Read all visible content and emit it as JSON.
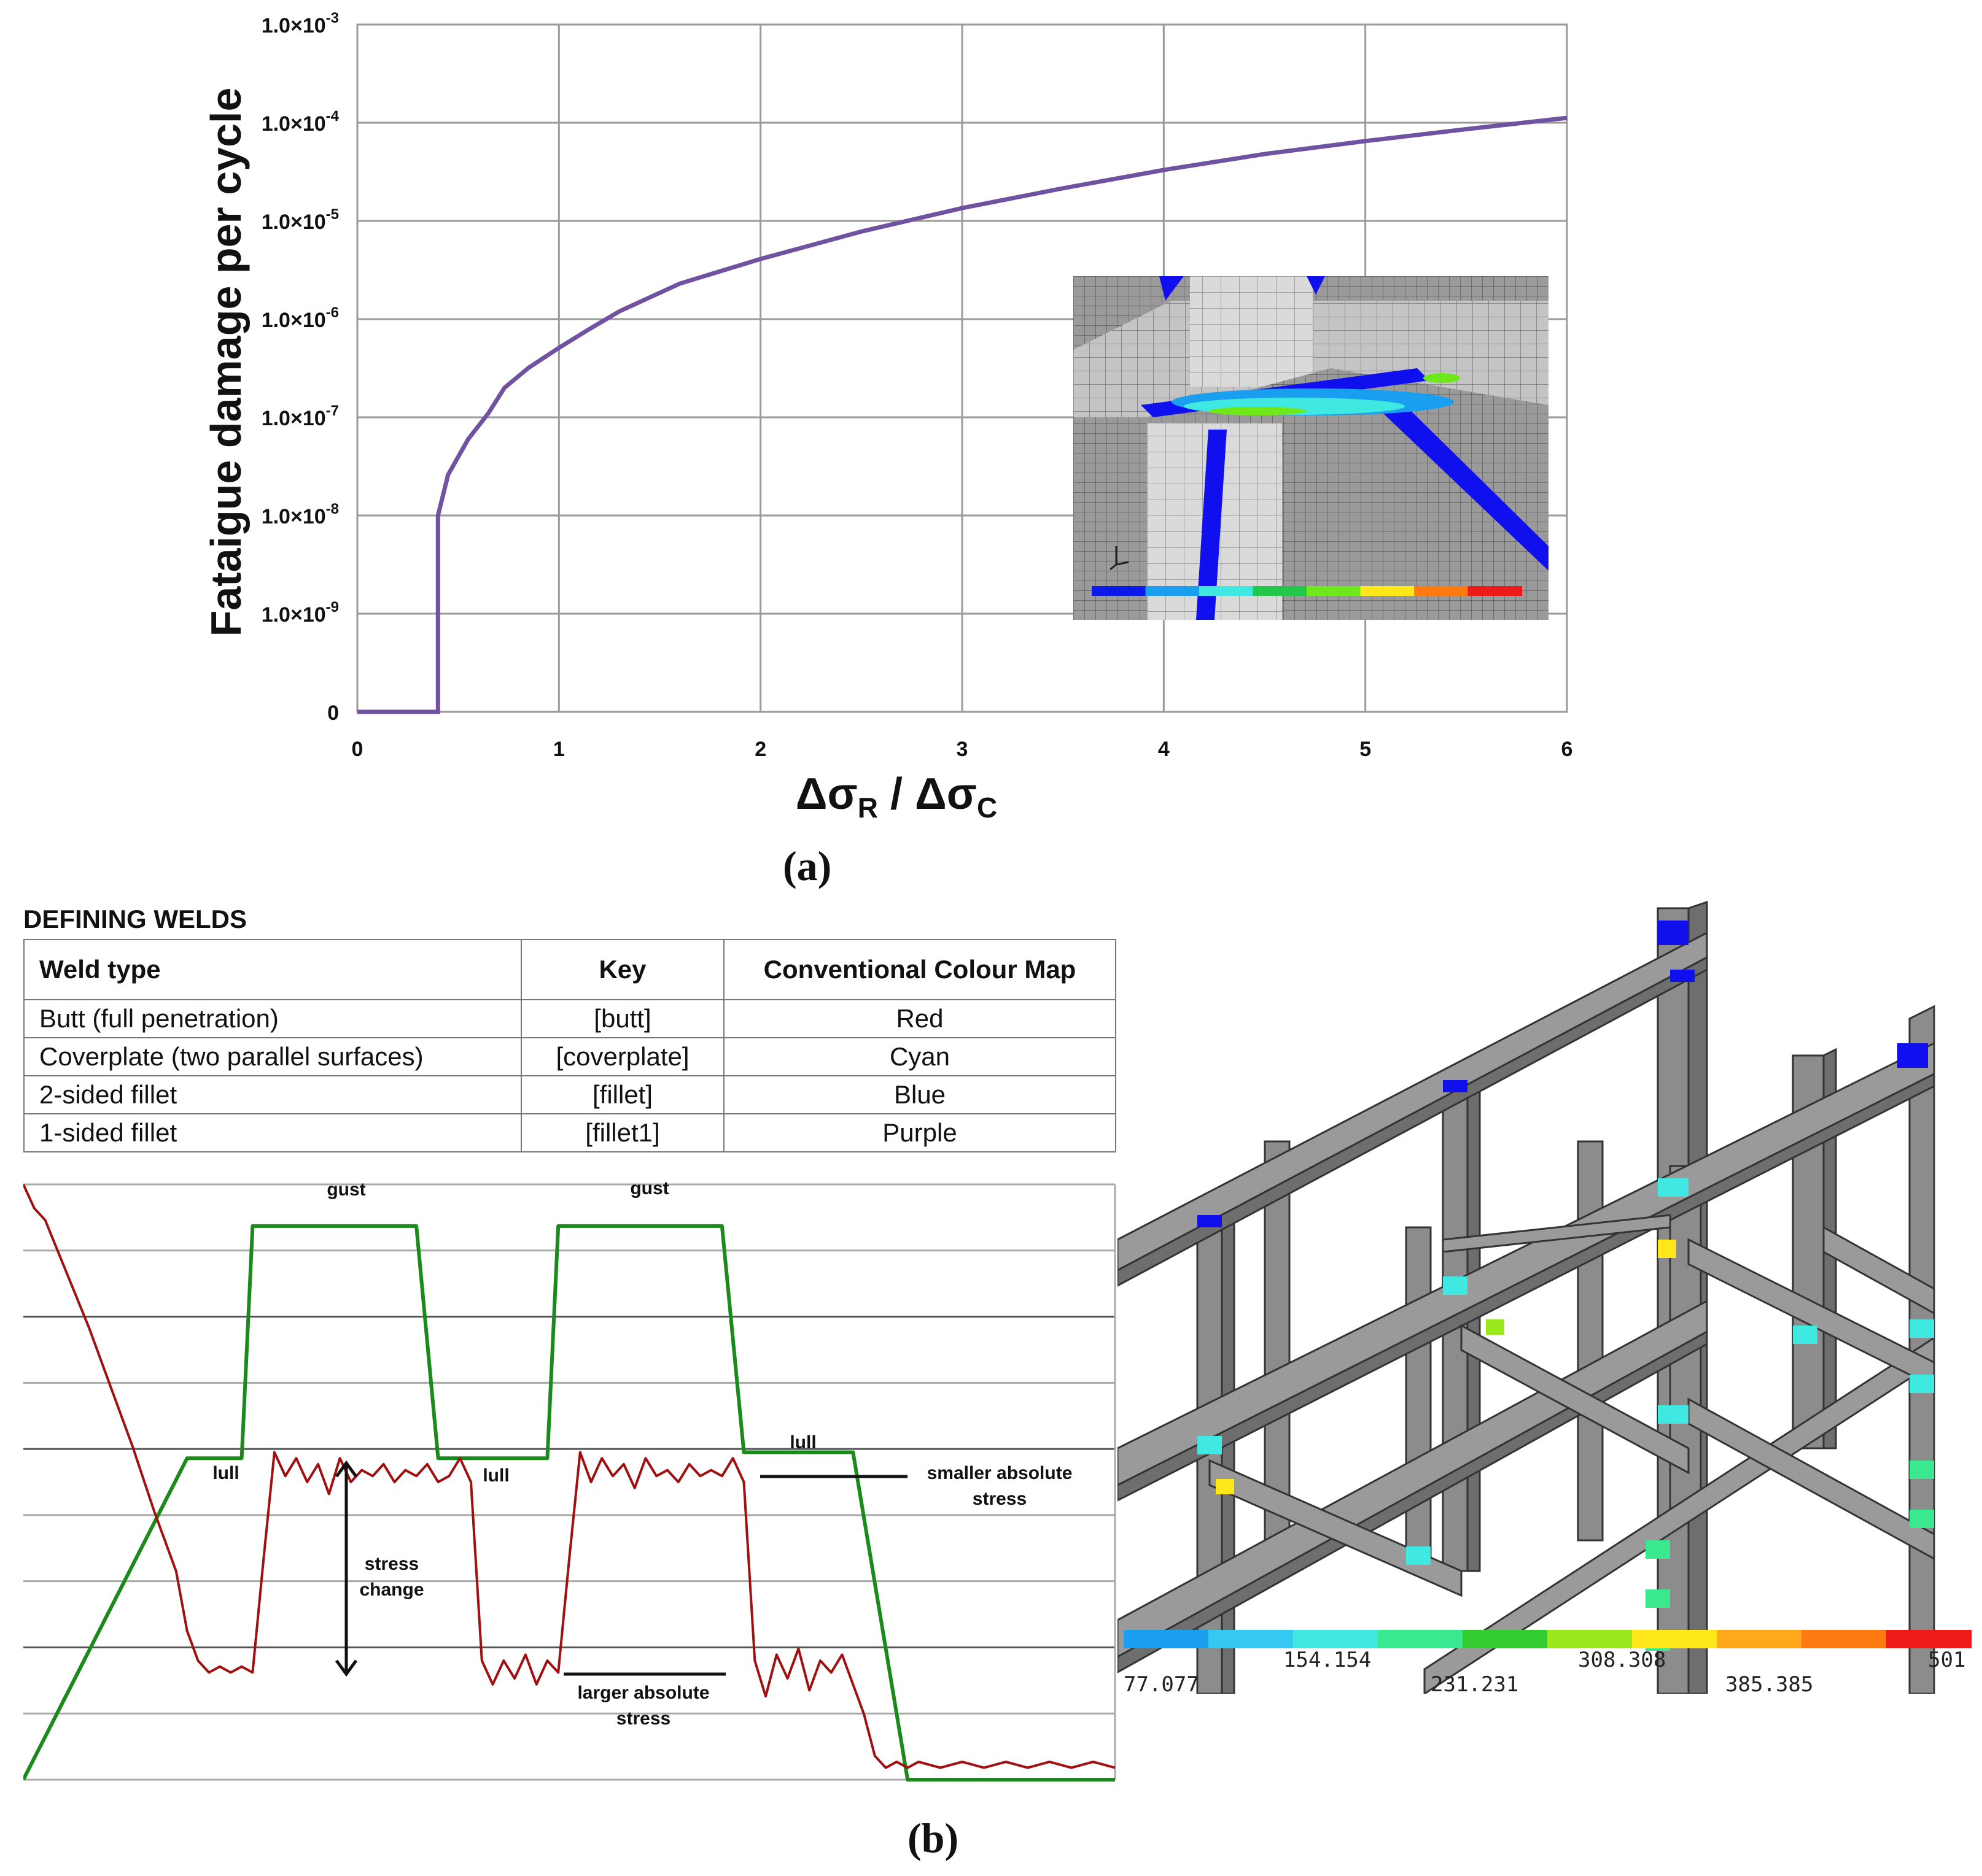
{
  "panel_labels": {
    "a": "(a)",
    "b": "(b)"
  },
  "chart_data": [
    {
      "type": "line",
      "title": "",
      "ylabel": "Fataigue damage per cycle",
      "xlabel_main": "Δσ",
      "xlabel_sub1": "R",
      "xlabel_sep": " / Δσ",
      "xlabel_sub2": "C",
      "xlim": [
        0,
        6
      ],
      "x_ticks": [
        "0",
        "1",
        "2",
        "3",
        "4",
        "5",
        "6"
      ],
      "y_scale": "log",
      "y_ticks": [
        {
          "mant": "0",
          "exp": ""
        },
        {
          "mant": "1.0×10",
          "exp": "-9"
        },
        {
          "mant": "1.0×10",
          "exp": "-8"
        },
        {
          "mant": "1.0×10",
          "exp": "-7"
        },
        {
          "mant": "1.0×10",
          "exp": "-6"
        },
        {
          "mant": "1.0×10",
          "exp": "-5"
        },
        {
          "mant": "1.0×10",
          "exp": "-4"
        },
        {
          "mant": "1.0×10",
          "exp": "-3"
        }
      ],
      "grid": true,
      "line_color": "#7052a0",
      "series": [
        {
          "x": [
            0,
            0.4,
            0.4,
            0.45,
            0.55,
            0.65,
            0.73,
            0.85,
            1.0,
            1.15,
            1.3,
            1.6,
            2.0,
            2.5,
            3.0,
            3.5,
            4.0,
            4.5,
            5.0,
            5.5,
            6.0
          ],
          "y": [
            0,
            0,
            1e-08,
            2.6e-08,
            6e-08,
            1.1e-07,
            2e-07,
            3.2e-07,
            5.1e-07,
            7.9e-07,
            1.2e-06,
            2.3e-06,
            4.1e-06,
            7.8e-06,
            1.35e-05,
            2.15e-05,
            3.3e-05,
            4.8e-05,
            6.5e-05,
            8.6e-05,
            0.000112
          ]
        }
      ]
    },
    {
      "type": "line",
      "title": "",
      "xlabel": "",
      "ylabel": "",
      "xlim": [
        0,
        100
      ],
      "ylim": [
        0,
        100
      ],
      "grid": true,
      "series": [
        {
          "color": "#1a8a1a",
          "x": [
            0,
            15,
            20,
            21,
            36,
            38,
            48,
            49,
            64,
            66,
            76,
            81,
            100
          ],
          "y": [
            0,
            54,
            54,
            93,
            93,
            54,
            54,
            93,
            93,
            55,
            55,
            0,
            0
          ]
        },
        {
          "color": "#a01010",
          "x": [
            0,
            1,
            2,
            4,
            6,
            8,
            10,
            12,
            14,
            15,
            16,
            17,
            18,
            19,
            20,
            21,
            22,
            23,
            24,
            25,
            26,
            27,
            28,
            29,
            30,
            31,
            32,
            33,
            34,
            35,
            36,
            37,
            38,
            39,
            40,
            41,
            42,
            43,
            44,
            45,
            46,
            47,
            48,
            49,
            50,
            51,
            52,
            53,
            54,
            55,
            56,
            57,
            58,
            59,
            60,
            61,
            62,
            63,
            64,
            65,
            66,
            67,
            68,
            69,
            70,
            71,
            72,
            73,
            74,
            75,
            76,
            77,
            78,
            79,
            80,
            81,
            82,
            84,
            86,
            88,
            90,
            92,
            94,
            96,
            98,
            100
          ],
          "y": [
            100,
            96,
            94,
            85,
            76,
            66,
            56,
            45,
            35,
            25,
            20,
            18,
            19,
            18,
            19,
            18,
            37,
            55,
            51,
            54,
            50,
            53,
            48,
            54,
            50,
            52,
            51,
            53,
            50,
            52,
            51,
            53,
            50,
            51,
            54,
            50,
            20,
            16,
            20,
            17,
            21,
            16,
            20,
            18,
            37,
            55,
            50,
            54,
            51,
            53,
            49,
            54,
            51,
            52,
            50,
            53,
            51,
            52,
            51,
            54,
            50,
            20,
            14,
            21,
            17,
            22,
            15,
            20,
            18,
            21,
            16,
            11,
            4,
            2,
            3,
            2,
            3,
            2,
            3,
            2,
            3,
            2,
            3,
            2,
            3,
            2
          ]
        }
      ],
      "annotations": [
        {
          "text": "gust",
          "label": "gust-1"
        },
        {
          "text": "gust",
          "label": "gust-2"
        },
        {
          "text": "lull",
          "label": "lull-1"
        },
        {
          "text": "lull",
          "label": "lull-2"
        },
        {
          "text": "lull",
          "label": "lull-3"
        },
        {
          "text": "stress change",
          "label": "stress-change"
        },
        {
          "text": "smaller absolute stress",
          "label": "smaller"
        },
        {
          "text": "larger absolute stress",
          "label": "larger"
        }
      ]
    }
  ],
  "annot": {
    "gust1": "gust",
    "gust2": "gust",
    "lull1": "lull",
    "lull2": "lull",
    "lull3": "lull",
    "stress_change_1": "stress",
    "stress_change_2": "change",
    "smaller_1": "smaller absolute",
    "smaller_2": "stress",
    "larger_1": "larger absolute",
    "larger_2": "stress"
  },
  "table": {
    "title": "DEFINING WELDS",
    "headers": [
      "Weld type",
      "Key",
      "Conventional Colour Map"
    ],
    "rows": [
      [
        "Butt (full penetration)",
        "[butt]",
        "Red"
      ],
      [
        "Coverplate (two parallel surfaces)",
        "[coverplate]",
        "Cyan"
      ],
      [
        "2-sided fillet",
        "[fillet]",
        "Blue"
      ],
      [
        "1-sided fillet",
        "[fillet1]",
        "Purple"
      ]
    ]
  },
  "colorbar": {
    "labels": [
      "77.077",
      "154.154",
      "231.231",
      "308.308",
      "385.385",
      "501"
    ],
    "colors": [
      "#1b9ef0",
      "#35c8f0",
      "#3fe8e0",
      "#3ae890",
      "#33cc33",
      "#9ce81f",
      "#ffe81a",
      "#ffa81a",
      "#ff7a10",
      "#ee1a1a"
    ]
  },
  "inset_colorbar": {
    "colors": [
      "#0b1ae8",
      "#1a9ef0",
      "#3fe8e0",
      "#22c84a",
      "#6ee81a",
      "#ffe81a",
      "#ff7a10",
      "#ee1a1a"
    ]
  }
}
